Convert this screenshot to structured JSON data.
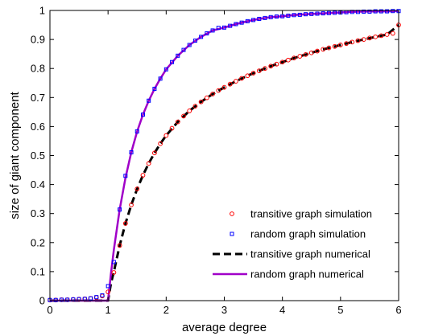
{
  "chart_data": {
    "type": "line",
    "title": "",
    "xlabel": "average degree",
    "ylabel": "size of giant component",
    "xlim": [
      0,
      6
    ],
    "ylim": [
      0,
      1
    ],
    "xticks": [
      0,
      1,
      2,
      3,
      4,
      5,
      6
    ],
    "yticks": [
      0,
      0.1,
      0.2,
      0.3,
      0.4,
      0.5,
      0.6,
      0.7,
      0.8,
      0.9,
      1
    ],
    "grid": false,
    "legend_position": "bottom-right",
    "series": [
      {
        "name": "transitive graph simulation",
        "kind": "marker",
        "marker": "circle",
        "color": "#ff0000",
        "x": [
          0,
          0.1,
          0.2,
          0.3,
          0.4,
          0.5,
          0.6,
          0.7,
          0.8,
          0.9,
          1.0,
          1.1,
          1.2,
          1.3,
          1.4,
          1.5,
          1.6,
          1.7,
          1.8,
          1.9,
          2.0,
          2.1,
          2.2,
          2.3,
          2.4,
          2.5,
          2.6,
          2.7,
          2.8,
          2.9,
          3.0,
          3.1,
          3.2,
          3.3,
          3.4,
          3.5,
          3.6,
          3.7,
          3.8,
          3.9,
          4.0,
          4.1,
          4.2,
          4.3,
          4.4,
          4.5,
          4.6,
          4.7,
          4.8,
          4.9,
          5.0,
          5.1,
          5.2,
          5.3,
          5.4,
          5.5,
          5.6,
          5.7,
          5.8,
          5.9,
          6.0
        ],
        "y": [
          0.002,
          0.002,
          0.003,
          0.003,
          0.004,
          0.005,
          0.006,
          0.008,
          0.011,
          0.016,
          0.03,
          0.097,
          0.19,
          0.266,
          0.33,
          0.385,
          0.432,
          0.473,
          0.509,
          0.541,
          0.569,
          0.594,
          0.616,
          0.636,
          0.654,
          0.67,
          0.685,
          0.699,
          0.712,
          0.724,
          0.735,
          0.746,
          0.756,
          0.766,
          0.775,
          0.784,
          0.792,
          0.8,
          0.808,
          0.815,
          0.822,
          0.829,
          0.836,
          0.842,
          0.848,
          0.854,
          0.86,
          0.866,
          0.871,
          0.876,
          0.881,
          0.886,
          0.891,
          0.896,
          0.9,
          0.905,
          0.909,
          0.913,
          0.917,
          0.921,
          0.95
        ]
      },
      {
        "name": "random graph simulation",
        "kind": "marker",
        "marker": "square",
        "color": "#0000ff",
        "x": [
          0,
          0.1,
          0.2,
          0.3,
          0.4,
          0.5,
          0.6,
          0.7,
          0.8,
          0.9,
          1.0,
          1.1,
          1.2,
          1.3,
          1.4,
          1.5,
          1.6,
          1.7,
          1.8,
          1.9,
          2.0,
          2.1,
          2.2,
          2.3,
          2.4,
          2.5,
          2.6,
          2.7,
          2.8,
          2.9,
          3.0,
          3.1,
          3.2,
          3.3,
          3.4,
          3.5,
          3.6,
          3.7,
          3.8,
          3.9,
          4.0,
          4.1,
          4.2,
          4.3,
          4.4,
          4.5,
          4.6,
          4.7,
          4.8,
          4.9,
          5.0,
          5.1,
          5.2,
          5.3,
          5.4,
          5.5,
          5.6,
          5.7,
          5.8,
          5.9,
          6.0
        ],
        "y": [
          0.002,
          0.002,
          0.003,
          0.003,
          0.004,
          0.005,
          0.006,
          0.008,
          0.012,
          0.018,
          0.05,
          0.133,
          0.314,
          0.43,
          0.511,
          0.583,
          0.641,
          0.689,
          0.73,
          0.765,
          0.797,
          0.822,
          0.844,
          0.864,
          0.881,
          0.896,
          0.909,
          0.921,
          0.931,
          0.94,
          0.941,
          0.947,
          0.953,
          0.958,
          0.963,
          0.967,
          0.971,
          0.974,
          0.977,
          0.979,
          0.98,
          0.982,
          0.984,
          0.985,
          0.987,
          0.988,
          0.989,
          0.99,
          0.991,
          0.992,
          0.993,
          0.994,
          0.995,
          0.995,
          0.996,
          0.996,
          0.997,
          0.997,
          0.997,
          0.998,
          0.998
        ]
      },
      {
        "name": "transitive graph numerical",
        "kind": "line",
        "dash": "dashed",
        "color": "#000000",
        "x": [
          0,
          0.5,
          0.9,
          1.0,
          1.05,
          1.1,
          1.2,
          1.3,
          1.4,
          1.5,
          1.6,
          1.7,
          1.8,
          1.9,
          2.0,
          2.2,
          2.4,
          2.6,
          2.8,
          3.0,
          3.2,
          3.4,
          3.6,
          3.8,
          4.0,
          4.2,
          4.4,
          4.6,
          4.8,
          5.0,
          5.2,
          5.4,
          5.6,
          5.8,
          6.0
        ],
        "y": [
          0,
          0,
          0,
          0,
          0.06,
          0.1,
          0.19,
          0.266,
          0.33,
          0.385,
          0.432,
          0.473,
          0.509,
          0.541,
          0.569,
          0.616,
          0.654,
          0.685,
          0.712,
          0.735,
          0.756,
          0.775,
          0.792,
          0.808,
          0.822,
          0.836,
          0.848,
          0.86,
          0.871,
          0.881,
          0.891,
          0.9,
          0.909,
          0.917,
          0.95
        ]
      },
      {
        "name": "random graph numerical",
        "kind": "line",
        "dash": "solid",
        "color": "#a000c8",
        "x": [
          0,
          0.5,
          0.9,
          1.0,
          1.05,
          1.1,
          1.2,
          1.3,
          1.4,
          1.5,
          1.6,
          1.7,
          1.8,
          1.9,
          2.0,
          2.2,
          2.4,
          2.6,
          2.8,
          3.0,
          3.2,
          3.4,
          3.6,
          3.8,
          4.0,
          4.2,
          4.4,
          4.6,
          4.8,
          5.0,
          5.2,
          5.4,
          5.6,
          5.8,
          6.0
        ],
        "y": [
          0,
          0,
          0,
          0,
          0.094,
          0.176,
          0.314,
          0.423,
          0.511,
          0.583,
          0.641,
          0.689,
          0.73,
          0.765,
          0.797,
          0.844,
          0.881,
          0.909,
          0.931,
          0.941,
          0.953,
          0.963,
          0.971,
          0.977,
          0.98,
          0.984,
          0.987,
          0.989,
          0.991,
          0.993,
          0.995,
          0.996,
          0.997,
          0.997,
          0.998
        ]
      }
    ]
  }
}
